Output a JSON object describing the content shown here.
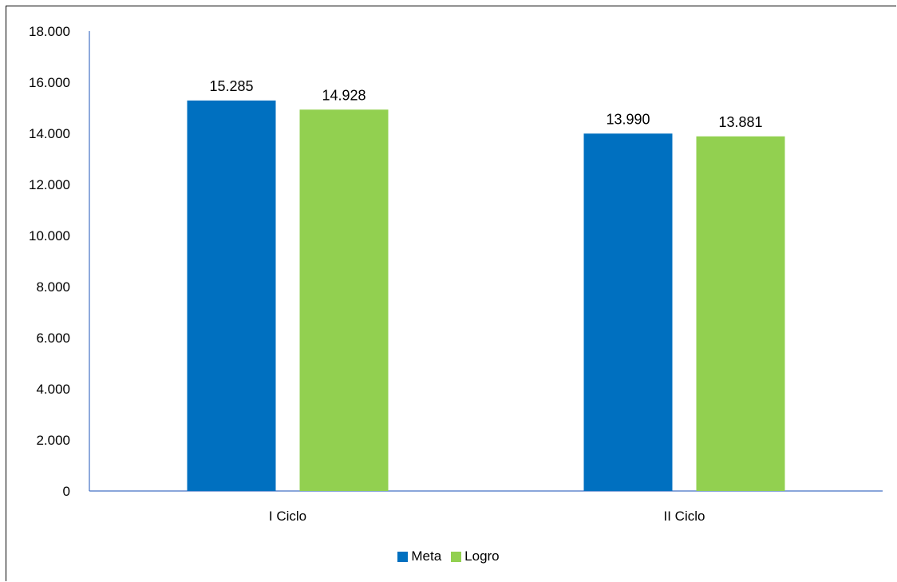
{
  "chart_data": {
    "type": "bar",
    "categories": [
      "I Ciclo",
      "II Ciclo"
    ],
    "series": [
      {
        "name": "Meta",
        "values": [
          15285,
          13990
        ],
        "labels": [
          "15.285",
          "13.990"
        ],
        "color": "#0070C0"
      },
      {
        "name": "Logro",
        "values": [
          14928,
          13881
        ],
        "labels": [
          "14.928",
          "13.881"
        ],
        "color": "#92D050"
      }
    ],
    "yticks": [
      "0",
      "2.000",
      "4.000",
      "6.000",
      "8.000",
      "10.000",
      "12.000",
      "14.000",
      "16.000",
      "18.000"
    ],
    "ylim": [
      0,
      18000
    ],
    "legend_position": "bottom",
    "grid": false,
    "axis_color": "#4472C4"
  }
}
